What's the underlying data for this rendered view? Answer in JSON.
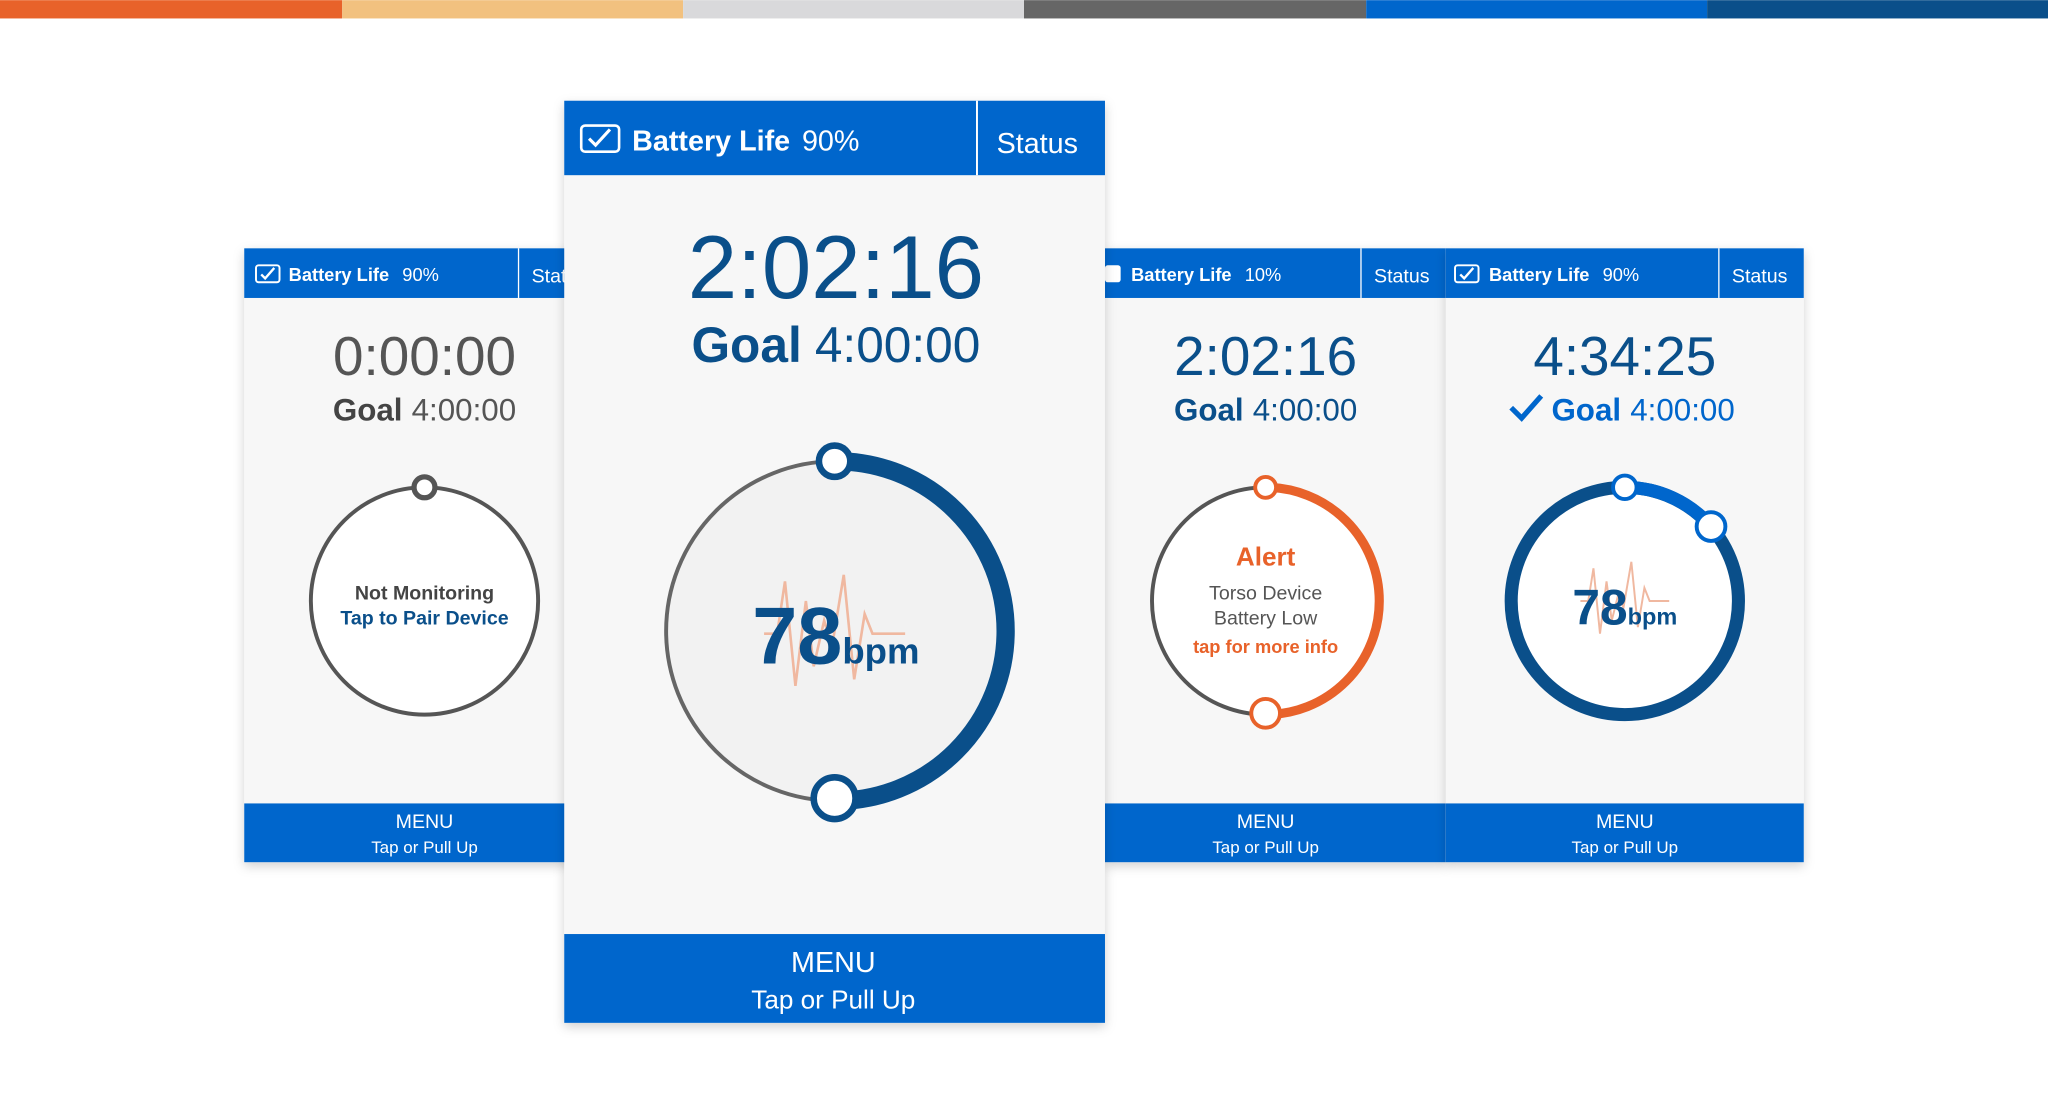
{
  "screens": [
    {
      "battery_label": "Battery Life",
      "battery_value": "90%",
      "status": "Status",
      "time": "0:00:00",
      "goal_label": "Goal",
      "goal_time": "4:00:00",
      "line1": "Not Monitoring",
      "line2": "Tap to Pair Device",
      "menu": "MENU",
      "menu_hint": "Tap or Pull Up"
    },
    {
      "battery_label": "Battery Life",
      "battery_value": "90%",
      "status": "Status",
      "time": "2:02:16",
      "goal_label": "Goal",
      "goal_time": "4:00:00",
      "bpm_value": "78",
      "bpm_unit": "bpm",
      "menu": "MENU",
      "menu_hint": "Tap or Pull Up"
    },
    {
      "battery_label": "Battery Life",
      "battery_value": "10%",
      "status": "Status",
      "time": "2:02:16",
      "goal_label": "Goal",
      "goal_time": "4:00:00",
      "alert": "Alert",
      "line1": "Torso Device",
      "line2": "Battery Low",
      "line3": "tap for more info",
      "menu": "MENU",
      "menu_hint": "Tap or Pull Up"
    },
    {
      "battery_label": "Battery Life",
      "battery_value": "90%",
      "status": "Status",
      "time": "4:34:25",
      "goal_label": "Goal",
      "goal_time": "4:00:00",
      "bpm_value": "78",
      "bpm_unit": "bpm",
      "menu": "MENU",
      "menu_hint": "Tap or Pull Up"
    }
  ]
}
